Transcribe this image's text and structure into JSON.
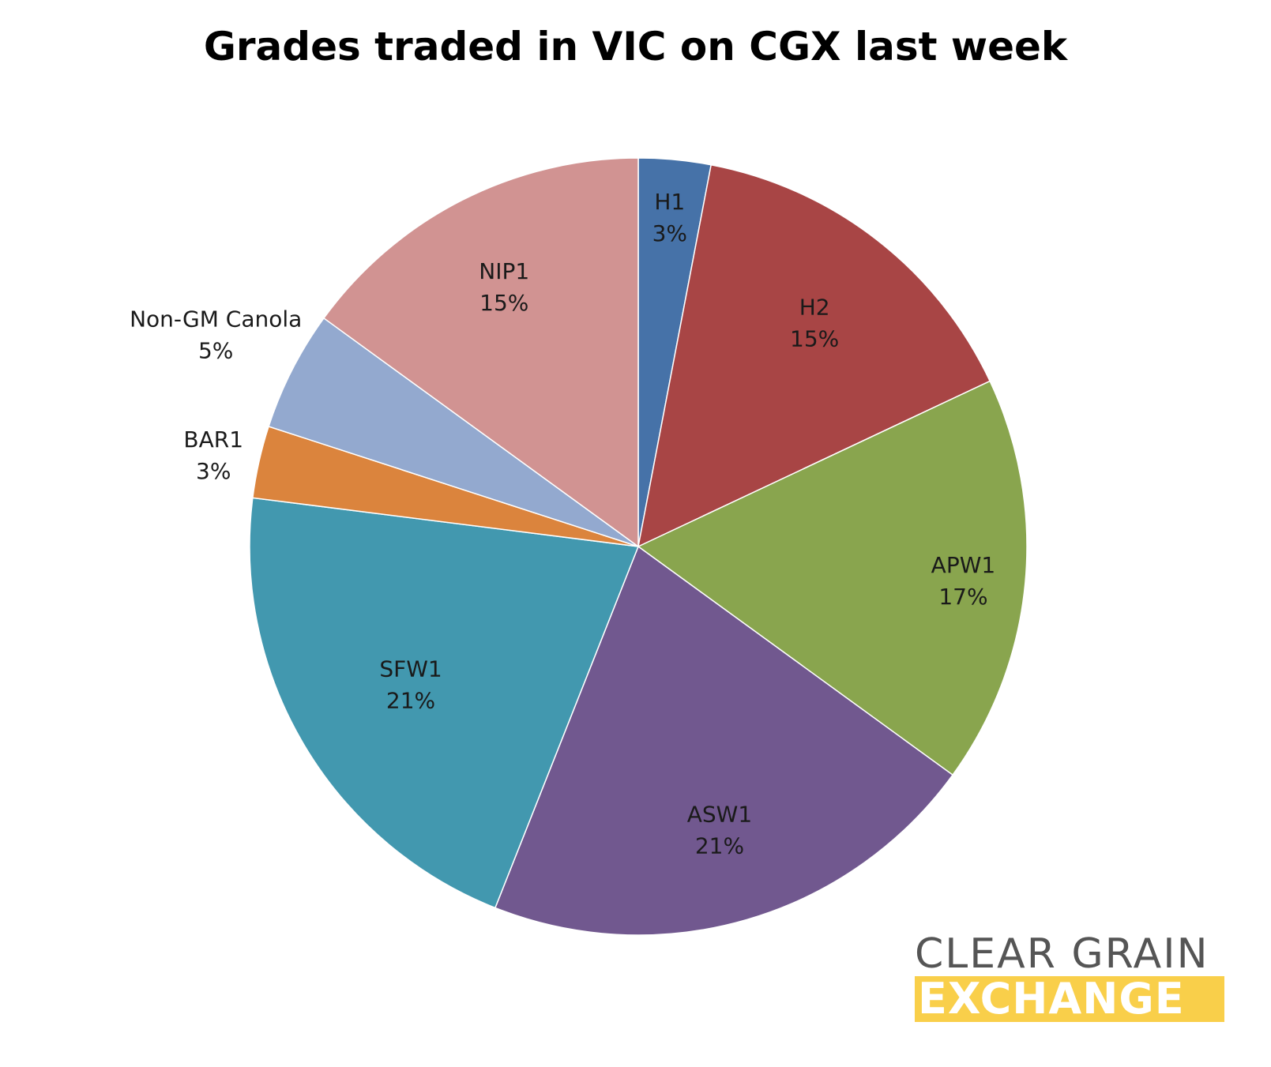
{
  "chart_data": {
    "type": "pie",
    "title": "Grades traded in VIC on CGX last week",
    "slices": [
      {
        "label": "H1",
        "value_label": "3%",
        "value": 3,
        "color": "#4672a8"
      },
      {
        "label": "H2",
        "value_label": "15%",
        "value": 15,
        "color": "#a84545"
      },
      {
        "label": "APW1",
        "value_label": "17%",
        "value": 17,
        "color": "#89a54e"
      },
      {
        "label": "ASW1",
        "value_label": "21%",
        "value": 21,
        "color": "#71588f"
      },
      {
        "label": "SFW1",
        "value_label": "21%",
        "value": 21,
        "color": "#4298af"
      },
      {
        "label": "BAR1",
        "value_label": "3%",
        "value": 3,
        "color": "#db843d"
      },
      {
        "label": "Non-GM Canola",
        "value_label": "5%",
        "value": 5,
        "color": "#93a9cf"
      },
      {
        "label": "NIP1",
        "value_label": "15%",
        "value": 15,
        "color": "#d19392"
      }
    ]
  },
  "logo": {
    "line1": "CLEAR GRAIN",
    "line2": "EXCHANGE"
  }
}
